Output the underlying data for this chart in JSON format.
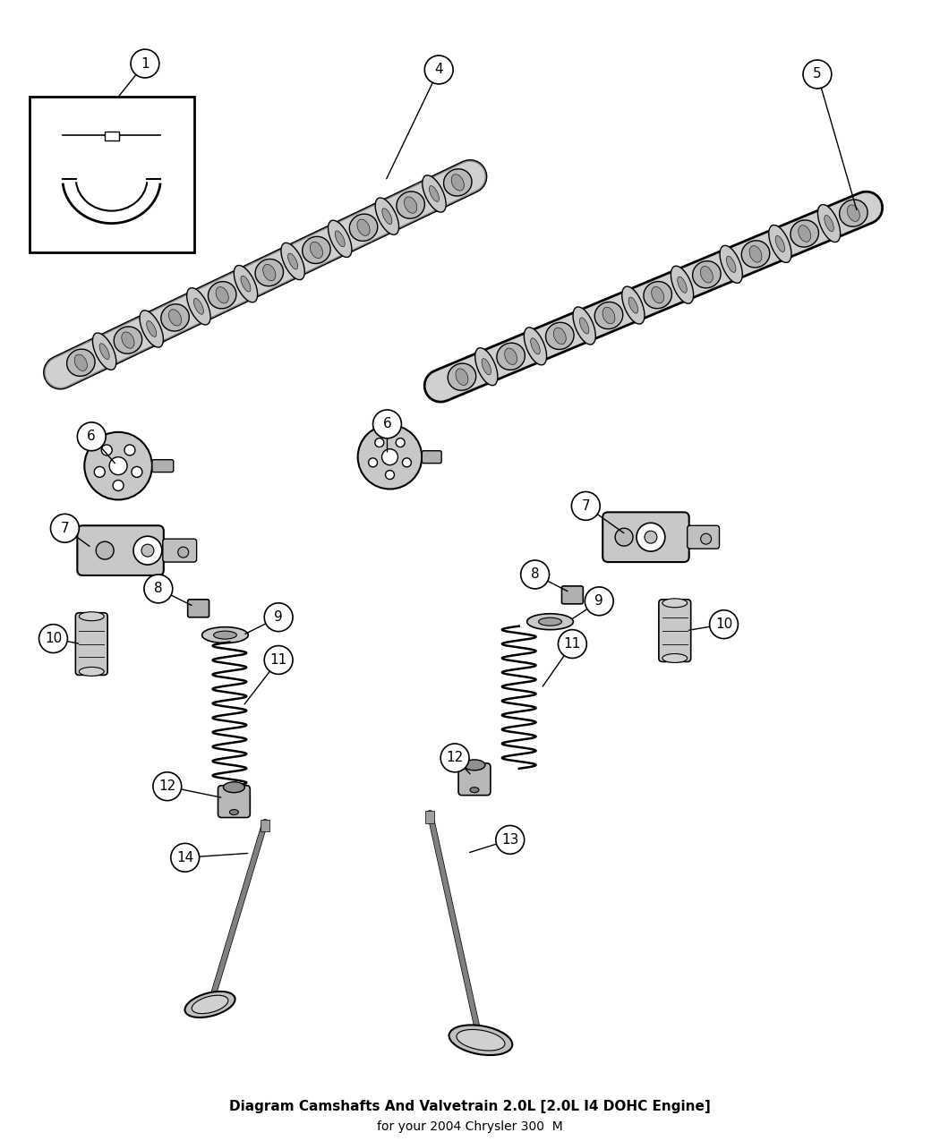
{
  "title": "Diagram Camshafts And Valvetrain 2.0L [2.0L I4 DOHC Engine]",
  "subtitle": "for your 2004 Chrysler 300  M",
  "bg_color": "#ffffff",
  "line_color": "#000000",
  "cam1_lobes": 18,
  "cam2_lobes": 18
}
